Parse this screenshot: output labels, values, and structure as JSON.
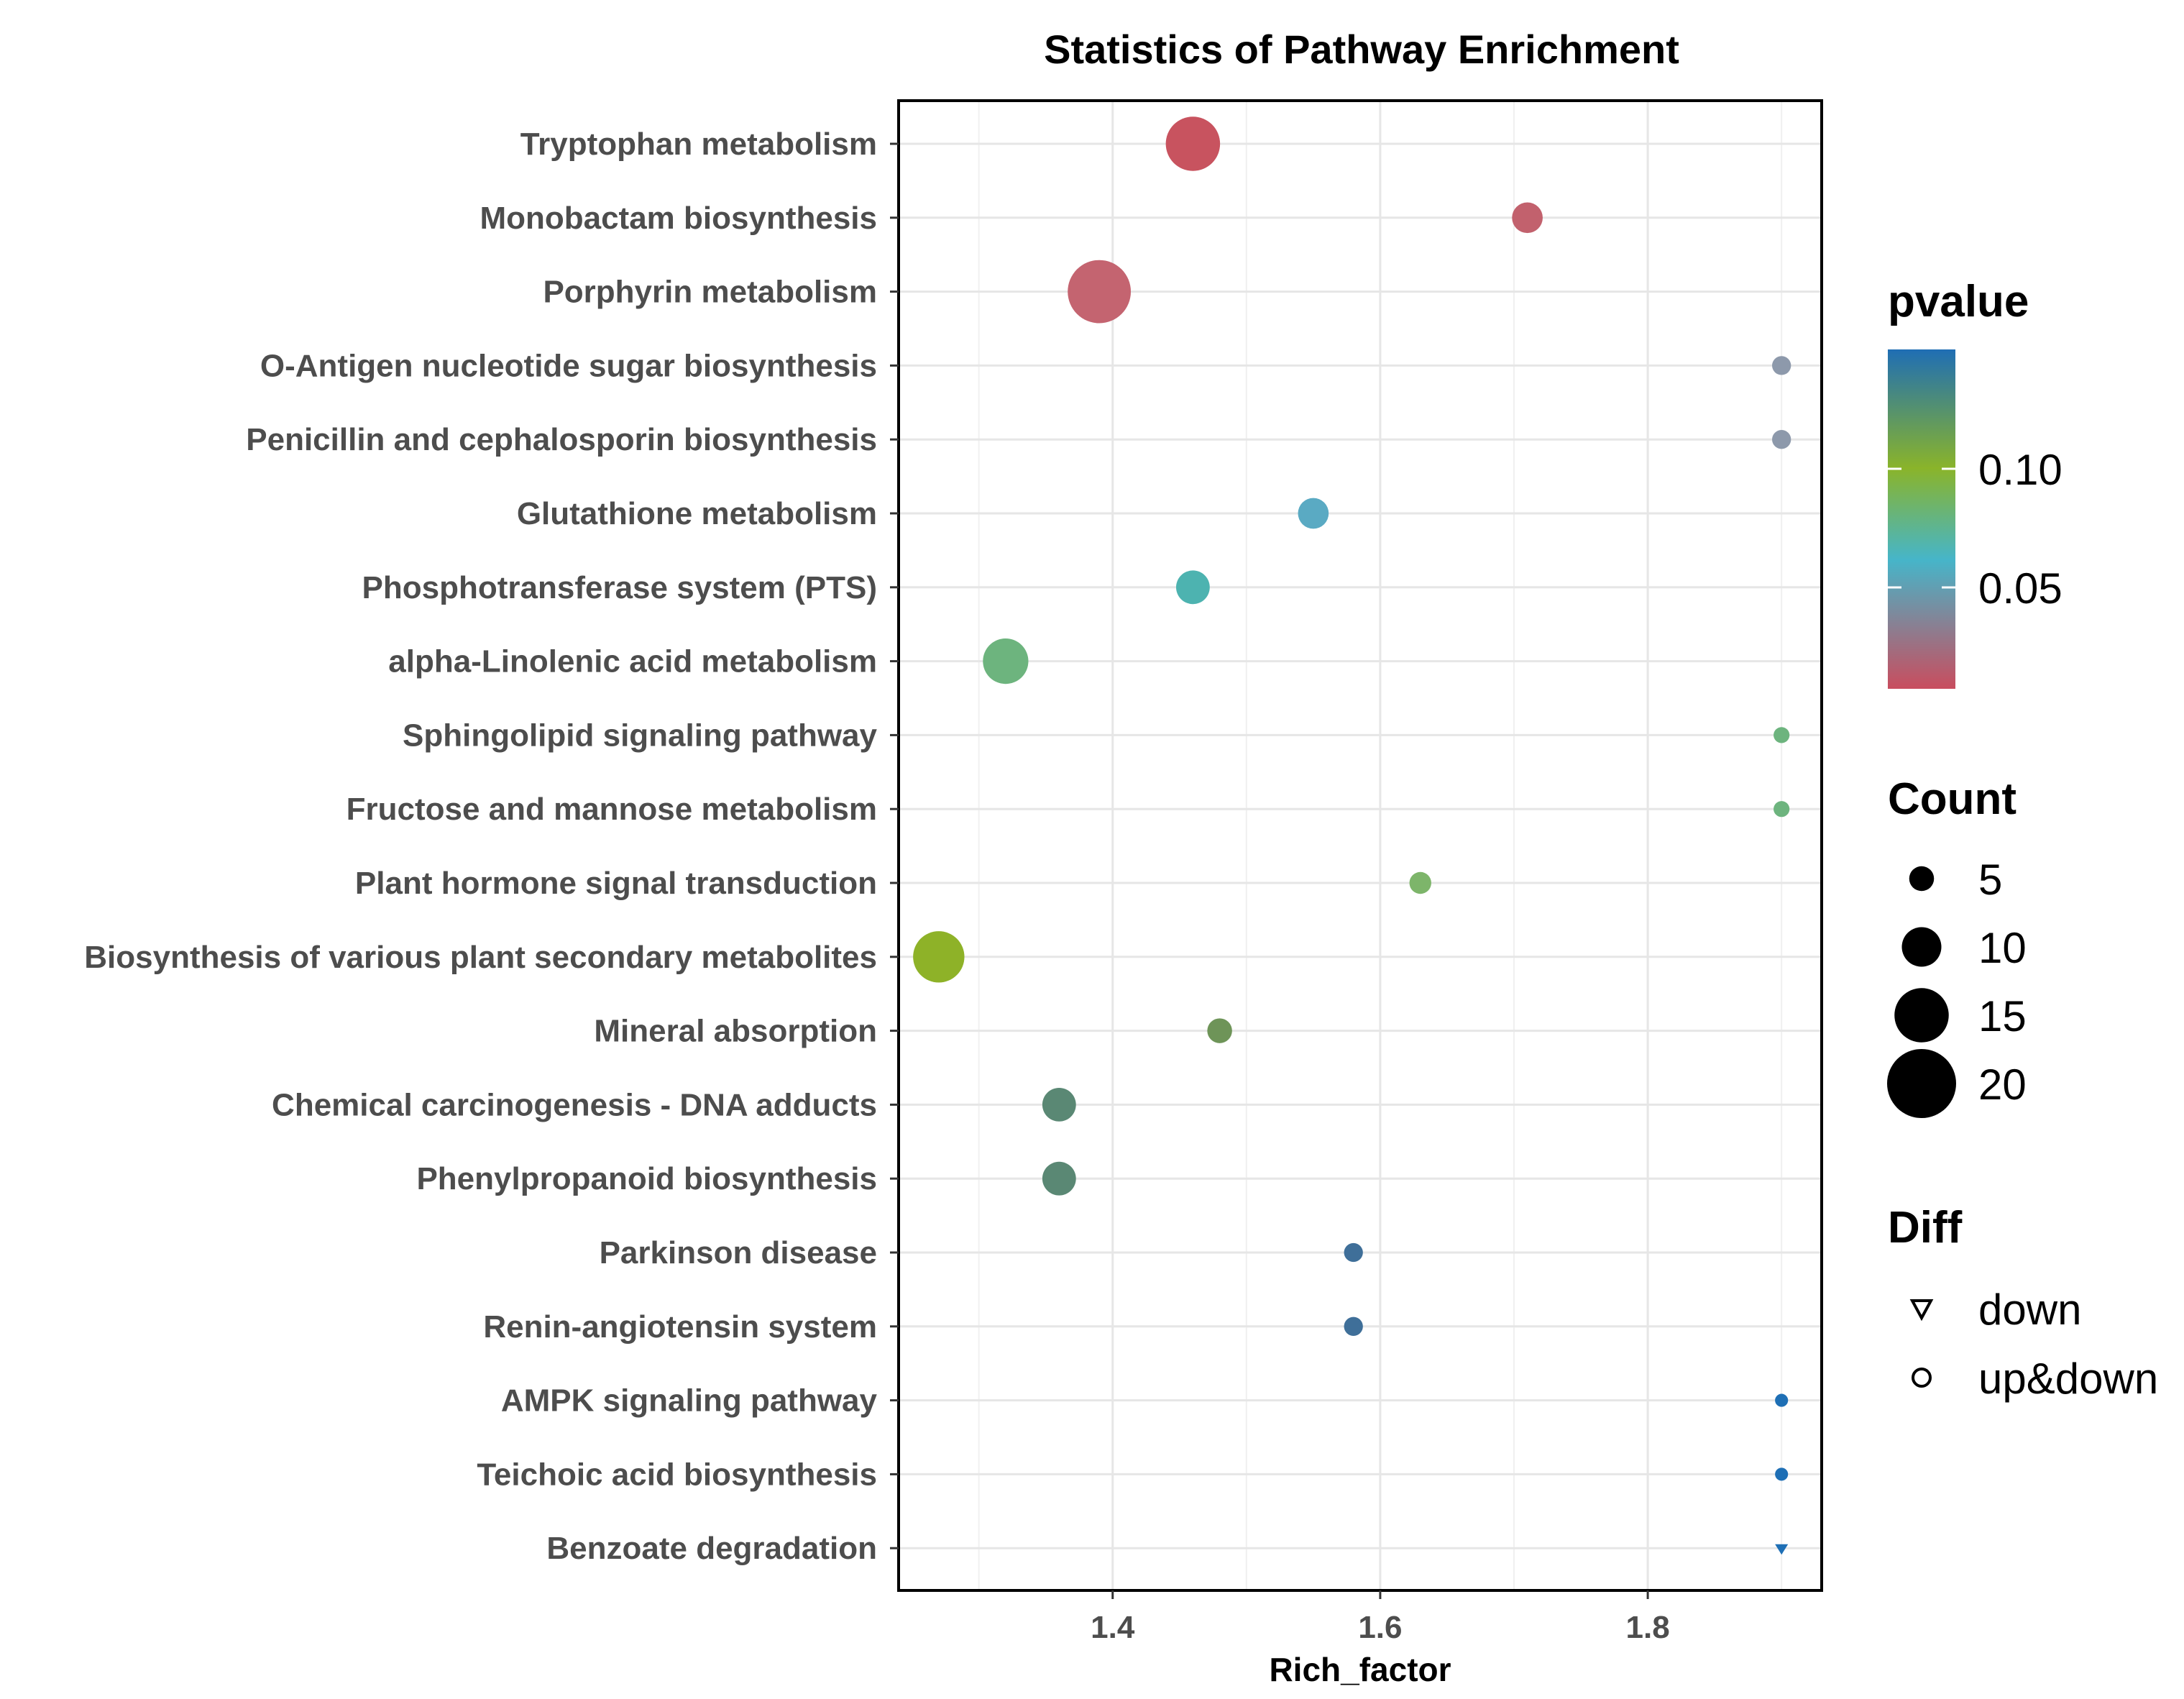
{
  "chart_data": {
    "type": "scatter",
    "title": "Statistics of Pathway Enrichment",
    "xlabel": "Rich_factor",
    "ylabel": "",
    "xlim": [
      1.24,
      1.93
    ],
    "xticks": [
      "1.4",
      "1.6",
      "1.8"
    ],
    "grid": true,
    "legend_position": "right",
    "color_legend": {
      "title": "pvalue",
      "ticks": [
        "0.10",
        "0.05"
      ],
      "gradient_colors": [
        "#c94d5e",
        "#46b5c9",
        "#8ab42a",
        "#1f6eb4"
      ]
    },
    "size_legend": {
      "title": "Count",
      "values": [
        5,
        10,
        15,
        20
      ],
      "labels": [
        "5",
        "10",
        "15",
        "20"
      ]
    },
    "shape_legend": {
      "title": "Diff",
      "items": [
        {
          "label": "down",
          "shape": "triangle-down"
        },
        {
          "label": "up&down",
          "shape": "circle"
        }
      ]
    },
    "points": [
      {
        "pathway": "Tryptophan metabolism",
        "rich_factor": 1.46,
        "count": 15,
        "pvalue": 0.003,
        "color": "#c8535f",
        "shape": "circle"
      },
      {
        "pathway": "Monobactam biosynthesis",
        "rich_factor": 1.71,
        "count": 7,
        "pvalue": 0.008,
        "color": "#c2616d",
        "shape": "circle"
      },
      {
        "pathway": "Porphyrin metabolism",
        "rich_factor": 1.39,
        "count": 18,
        "pvalue": 0.01,
        "color": "#c46470",
        "shape": "circle"
      },
      {
        "pathway": "O-Antigen nucleotide sugar biosynthesis",
        "rich_factor": 1.9,
        "count": 3,
        "pvalue": 0.03,
        "color": "#8d99ab",
        "shape": "circle"
      },
      {
        "pathway": "Penicillin and cephalosporin biosynthesis",
        "rich_factor": 1.9,
        "count": 3,
        "pvalue": 0.03,
        "color": "#8d99ab",
        "shape": "circle"
      },
      {
        "pathway": "Glutathione metabolism",
        "rich_factor": 1.55,
        "count": 7,
        "pvalue": 0.045,
        "color": "#5aaac3",
        "shape": "circle"
      },
      {
        "pathway": "Phosphotransferase system (PTS)",
        "rich_factor": 1.46,
        "count": 8,
        "pvalue": 0.06,
        "color": "#4db3b0",
        "shape": "circle"
      },
      {
        "pathway": "alpha-Linolenic acid metabolism",
        "rich_factor": 1.32,
        "count": 12,
        "pvalue": 0.075,
        "color": "#6db47e",
        "shape": "circle"
      },
      {
        "pathway": "Sphingolipid signaling pathway",
        "rich_factor": 1.9,
        "count": 2,
        "pvalue": 0.08,
        "color": "#6db47e",
        "shape": "circle"
      },
      {
        "pathway": "Fructose and mannose metabolism",
        "rich_factor": 1.9,
        "count": 2,
        "pvalue": 0.08,
        "color": "#6db47e",
        "shape": "circle"
      },
      {
        "pathway": "Plant hormone signal transduction",
        "rich_factor": 1.63,
        "count": 4,
        "pvalue": 0.085,
        "color": "#7db56a",
        "shape": "circle"
      },
      {
        "pathway": "Biosynthesis of various plant secondary metabolites",
        "rich_factor": 1.27,
        "count": 14,
        "pvalue": 0.1,
        "color": "#8eb228",
        "shape": "circle"
      },
      {
        "pathway": "Mineral absorption",
        "rich_factor": 1.48,
        "count": 5,
        "pvalue": 0.115,
        "color": "#6e9458",
        "shape": "circle"
      },
      {
        "pathway": "Chemical carcinogenesis - DNA adducts",
        "rich_factor": 1.36,
        "count": 8,
        "pvalue": 0.125,
        "color": "#5a8874",
        "shape": "circle"
      },
      {
        "pathway": "Phenylpropanoid biosynthesis",
        "rich_factor": 1.36,
        "count": 8,
        "pvalue": 0.125,
        "color": "#5a8874",
        "shape": "circle"
      },
      {
        "pathway": "Parkinson disease",
        "rich_factor": 1.58,
        "count": 3,
        "pvalue": 0.135,
        "color": "#3f6f99",
        "shape": "circle"
      },
      {
        "pathway": "Renin-angiotensin system",
        "rich_factor": 1.58,
        "count": 3,
        "pvalue": 0.135,
        "color": "#3f6f99",
        "shape": "circle"
      },
      {
        "pathway": "AMPK signaling pathway",
        "rich_factor": 1.9,
        "count": 1,
        "pvalue": 0.145,
        "color": "#1e6fb5",
        "shape": "circle"
      },
      {
        "pathway": "Teichoic acid biosynthesis",
        "rich_factor": 1.9,
        "count": 1,
        "pvalue": 0.145,
        "color": "#1e6fb5",
        "shape": "circle"
      },
      {
        "pathway": "Benzoate degradation",
        "rich_factor": 1.9,
        "count": 1,
        "pvalue": 0.145,
        "color": "#1e6fb5",
        "shape": "triangle-down"
      }
    ]
  }
}
